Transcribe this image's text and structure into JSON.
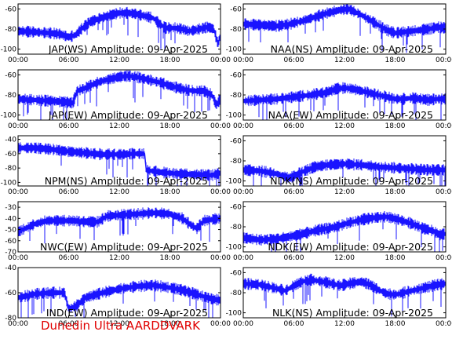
{
  "footer": "Dunedin Ultra AARDDVARK",
  "colors": {
    "trace": "#1a14ff",
    "axes": "#000000",
    "footer": "#e00000"
  },
  "chart_data": [
    {
      "type": "line",
      "title": "JAP(WS) Amplitude: 09-Apr-2025",
      "xlim": [
        0,
        24
      ],
      "ylim": [
        -105,
        -55
      ],
      "yticks": [
        -100,
        -80,
        -60
      ],
      "xticklabels": [
        "00:00",
        "06:00",
        "12:00",
        "18:00",
        "00:00"
      ],
      "x": [
        0,
        2,
        3.7,
        5,
        6,
        6.8,
        7.5,
        8.5,
        9.8,
        11,
        12,
        13,
        14,
        15,
        16,
        16.8,
        17.5,
        18.5,
        19.5,
        20.2,
        21,
        22,
        22.5,
        23.2,
        23.7,
        24
      ],
      "y": [
        -82,
        -83,
        -84,
        -85,
        -88,
        -86,
        -80,
        -73,
        -69,
        -66,
        -64,
        -64,
        -65,
        -67,
        -69,
        -75,
        -79,
        -79,
        -80,
        -82,
        -81,
        -79,
        -78,
        -80,
        -95,
        -86
      ]
    },
    {
      "type": "line",
      "title": "NAA(NS) Amplitude: 09-Apr-2025",
      "xlim": [
        0,
        24
      ],
      "ylim": [
        -105,
        -55
      ],
      "yticks": [
        -100,
        -80,
        -60
      ],
      "xticklabels": [
        "00:00",
        "06:00",
        "12:00",
        "18:00",
        "00:00"
      ],
      "x": [
        0,
        2,
        4,
        5.5,
        7,
        8.5,
        10,
        11.5,
        12.5,
        13,
        14,
        15,
        16,
        17,
        18,
        19,
        20,
        21,
        22,
        23,
        24
      ],
      "y": [
        -75,
        -76,
        -77,
        -75,
        -72,
        -68,
        -64,
        -61,
        -60,
        -62,
        -66,
        -71,
        -76,
        -81,
        -84,
        -83,
        -82,
        -81,
        -80,
        -78,
        -79
      ]
    },
    {
      "type": "line",
      "title": "JAP(EW) Amplitude: 09-Apr-2025",
      "xlim": [
        0,
        24
      ],
      "ylim": [
        -105,
        -55
      ],
      "yticks": [
        -100,
        -80,
        -60
      ],
      "xticklabels": [
        "00:00",
        "06:00",
        "12:00",
        "18:00",
        "00:00"
      ],
      "x": [
        0,
        2,
        4,
        5.5,
        6.5,
        7,
        8,
        9,
        10,
        11,
        12,
        13,
        14,
        15,
        16,
        17,
        18,
        19,
        20,
        21,
        22,
        23,
        23.5,
        24
      ],
      "y": [
        -84,
        -85,
        -86,
        -87,
        -88,
        -76,
        -73,
        -69,
        -66,
        -64,
        -62,
        -61,
        -62,
        -64,
        -66,
        -68,
        -71,
        -73,
        -75,
        -76,
        -76,
        -80,
        -90,
        -84
      ]
    },
    {
      "type": "line",
      "title": "NAA(EW) Amplitude: 09-Apr-2025",
      "xlim": [
        0,
        24
      ],
      "ylim": [
        -105,
        -55
      ],
      "yticks": [
        -100,
        -80,
        -60
      ],
      "xticklabels": [
        "00:00",
        "06:00",
        "12:00",
        "18:00",
        "00:00"
      ],
      "x": [
        0,
        2,
        4,
        6,
        8,
        10,
        11,
        12,
        13,
        14,
        15,
        16,
        17,
        18,
        19,
        20,
        21,
        22,
        23,
        24
      ],
      "y": [
        -86,
        -85,
        -84,
        -82,
        -80,
        -77,
        -74,
        -73,
        -74,
        -76,
        -78,
        -80,
        -82,
        -84,
        -84,
        -83,
        -84,
        -85,
        -84,
        -84
      ]
    },
    {
      "type": "line",
      "title": "NPM(NS) Amplitude: 09-Apr-2025",
      "xlim": [
        0,
        24
      ],
      "ylim": [
        -105,
        -35
      ],
      "yticks": [
        -100,
        -80,
        -60,
        -40
      ],
      "xticklabels": [
        "00:00",
        "06:00",
        "12:00",
        "18:00",
        "00:00"
      ],
      "x": [
        0,
        2,
        4,
        6,
        8,
        10,
        12,
        14,
        15,
        15.2,
        17,
        19,
        21,
        23,
        23.6,
        24
      ],
      "y": [
        -52,
        -52,
        -54,
        -57,
        -59,
        -61,
        -61,
        -60,
        -60,
        -83,
        -86,
        -88,
        -89,
        -90,
        -88,
        -87
      ]
    },
    {
      "type": "line",
      "title": "NDK(NS) Amplitude: 09-Apr-2025",
      "xlim": [
        0,
        24
      ],
      "ylim": [
        -105,
        -55
      ],
      "yticks": [
        -100,
        -80,
        -60
      ],
      "xticklabels": [
        "00:00",
        "06:00",
        "12:00",
        "18:00",
        "00:00"
      ],
      "x": [
        0,
        2,
        4,
        5.5,
        7,
        8.5,
        10,
        12,
        14,
        16,
        18,
        20,
        22,
        24
      ],
      "y": [
        -89,
        -90,
        -93,
        -97,
        -91,
        -86,
        -84,
        -83,
        -84,
        -86,
        -87,
        -88,
        -89,
        -89
      ]
    },
    {
      "type": "line",
      "title": "NWC(EW) Amplitude: 09-Apr-2025",
      "xlim": [
        0,
        24
      ],
      "ylim": [
        -70,
        -25
      ],
      "yticks": [
        -70,
        -60,
        -50,
        -40,
        -30
      ],
      "xticklabels": [
        "00:00",
        "06:00",
        "12:00",
        "18:00",
        "00:00"
      ],
      "x": [
        0,
        2,
        3.5,
        5,
        6.5,
        8,
        9.5,
        10.5,
        12,
        14,
        16,
        18,
        19.5,
        20.5,
        21.2,
        22,
        23,
        24
      ],
      "y": [
        -52,
        -45,
        -42,
        -42,
        -42,
        -43,
        -43,
        -38,
        -37,
        -36,
        -35,
        -36,
        -40,
        -46,
        -49,
        -42,
        -41,
        -40
      ]
    },
    {
      "type": "line",
      "title": "NDK(EW) Amplitude: 09-Apr-2025",
      "xlim": [
        0,
        24
      ],
      "ylim": [
        -105,
        -55
      ],
      "yticks": [
        -100,
        -80,
        -60
      ],
      "xticklabels": [
        "00:00",
        "06:00",
        "12:00",
        "18:00",
        "00:00"
      ],
      "x": [
        0,
        2,
        4,
        6,
        7,
        9,
        11,
        12.5,
        14,
        15.5,
        17,
        18.5,
        20,
        21.5,
        22.5,
        23.3,
        24
      ],
      "y": [
        -91,
        -93,
        -92,
        -89,
        -87,
        -83,
        -80,
        -76,
        -73,
        -71,
        -70,
        -73,
        -77,
        -82,
        -84,
        -88,
        -87
      ]
    },
    {
      "type": "line",
      "title": "IND(EW) Amplitude: 09-Apr-2025",
      "xlim": [
        0,
        24
      ],
      "ylim": [
        -80,
        -40
      ],
      "yticks": [
        -80,
        -60,
        -40
      ],
      "xticklabels": [
        "00:00",
        "06:00",
        "12:00",
        "18:00",
        "00:00"
      ],
      "x": [
        0,
        2,
        4,
        5.5,
        6,
        7,
        8,
        10,
        12,
        14,
        16,
        18,
        19.5,
        21,
        22,
        23,
        24
      ],
      "y": [
        -64,
        -61,
        -60,
        -60,
        -73,
        -70,
        -64,
        -60,
        -57,
        -55,
        -54,
        -56,
        -58,
        -61,
        -63,
        -65,
        -66
      ]
    },
    {
      "type": "line",
      "title": "NLK(NS) Amplitude: 09-Apr-2025",
      "xlim": [
        0,
        24
      ],
      "ylim": [
        -105,
        -55
      ],
      "yticks": [
        -100,
        -80,
        -60
      ],
      "xticklabels": [
        "00:00",
        "06:00",
        "12:00",
        "18:00",
        "00:00"
      ],
      "x": [
        0,
        2,
        4,
        5,
        6,
        7,
        8,
        10,
        11.5,
        12.5,
        14,
        15,
        16,
        17,
        18,
        19,
        20,
        21,
        22,
        23,
        24
      ],
      "y": [
        -71,
        -72,
        -76,
        -78,
        -73,
        -69,
        -67,
        -70,
        -73,
        -71,
        -69,
        -72,
        -77,
        -81,
        -82,
        -80,
        -78,
        -76,
        -74,
        -72,
        -71
      ]
    }
  ]
}
